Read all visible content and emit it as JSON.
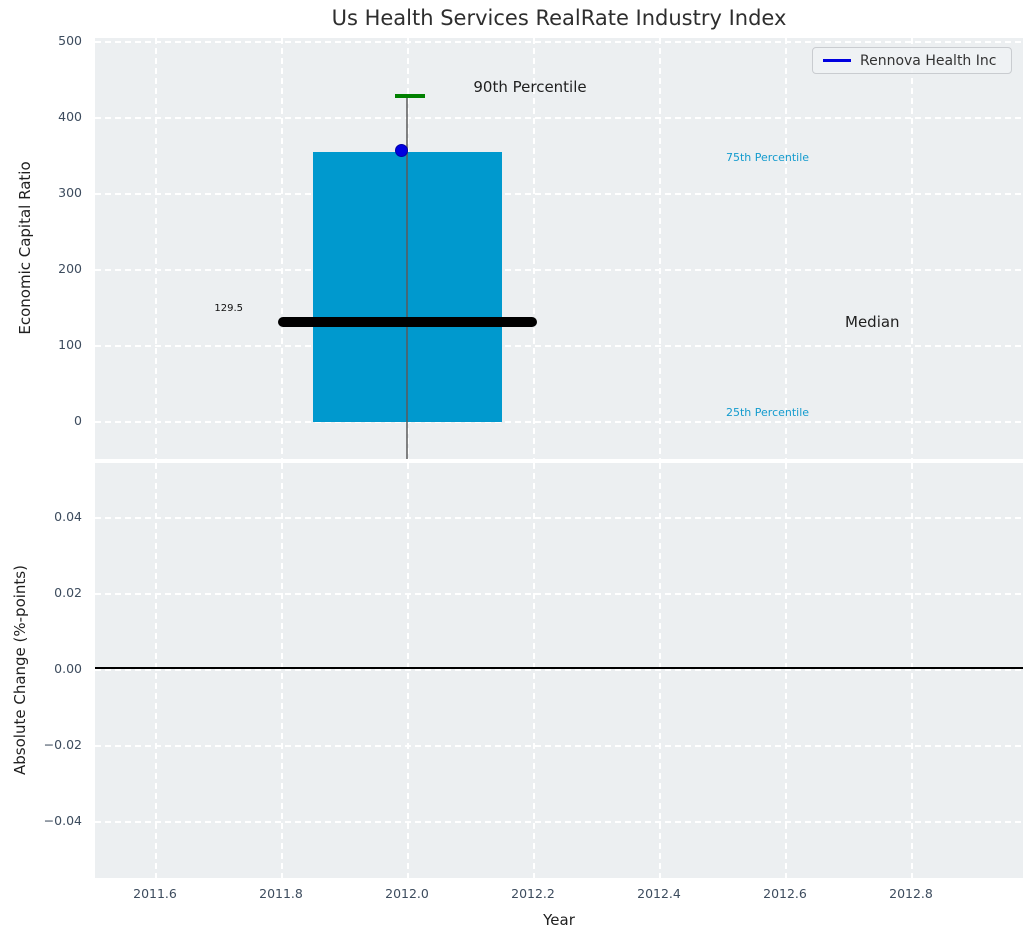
{
  "title": "Us Health Services RealRate Industry Index",
  "legend": {
    "label": "Rennova Health Inc",
    "line_color": "#0000e0"
  },
  "top_plot": {
    "ylabel": "Economic Capital Ratio",
    "yticks": [
      "500",
      "400",
      "300",
      "200",
      "100",
      "0"
    ],
    "p90_label": "90th Percentile",
    "p75_label": "75th Percentile",
    "median_label": "Median",
    "p25_label": "25th Percentile",
    "median_value_label": "129.5"
  },
  "bottom_plot": {
    "ylabel": "Absolute Change (%-points)",
    "yticks": [
      "0.04",
      "0.02",
      "0.00",
      "−0.02",
      "−0.04"
    ]
  },
  "x_axis": {
    "label": "Year",
    "ticks": [
      "2011.6",
      "2011.8",
      "2012.0",
      "2012.2",
      "2012.4",
      "2012.6",
      "2012.8"
    ]
  },
  "colors": {
    "plot_background": "#eceff1",
    "grid": "#ffffff",
    "box_fill": "#0099ce",
    "median_line": "#000000",
    "whisker": "#5a5a5a",
    "whisker_cap_90th": "#008000",
    "company_marker": "#0000e0",
    "percentile_text": "#139bce",
    "tick_text": "#3d4c5e",
    "zero_line": "#000000"
  },
  "chart_data": [
    {
      "type": "box",
      "subplot": "top",
      "title": "Us Health Services RealRate Industry Index",
      "xlabel": "Year",
      "ylabel": "Economic Capital Ratio",
      "xlim": [
        2011.5,
        2012.98
      ],
      "ylim": [
        -55,
        500
      ],
      "yticks": [
        0,
        100,
        200,
        300,
        400,
        500
      ],
      "grid": "white dashed, on",
      "box": {
        "x_center": 2012.0,
        "x_range": [
          2011.85,
          2012.15
        ],
        "p25": 0,
        "median": 129.5,
        "p75": 355,
        "p90": 429,
        "lower_whisker_clipped_below_axis_at": -50
      },
      "annotations": [
        "90th Percentile",
        "75th Percentile",
        "Median",
        "25th Percentile",
        "129.5"
      ],
      "series": [
        {
          "name": "Rennova Health Inc",
          "type": "scatter",
          "x": [
            2012.0
          ],
          "y": [
            354
          ],
          "marker": "circle",
          "color": "#0000e0"
        }
      ],
      "legend_position": "upper right"
    },
    {
      "type": "line",
      "subplot": "bottom",
      "xlabel": "Year",
      "ylabel": "Absolute Change (%-points)",
      "xlim": [
        2011.5,
        2012.98
      ],
      "ylim": [
        -0.055,
        0.055
      ],
      "yticks": [
        0.04,
        0.02,
        0.0,
        -0.02,
        -0.04
      ],
      "xticks": [
        2011.6,
        2011.8,
        2012.0,
        2012.2,
        2012.4,
        2012.6,
        2012.8
      ],
      "grid": "white dashed, on",
      "zero_reference_line_y": 0.0,
      "series": []
    }
  ]
}
